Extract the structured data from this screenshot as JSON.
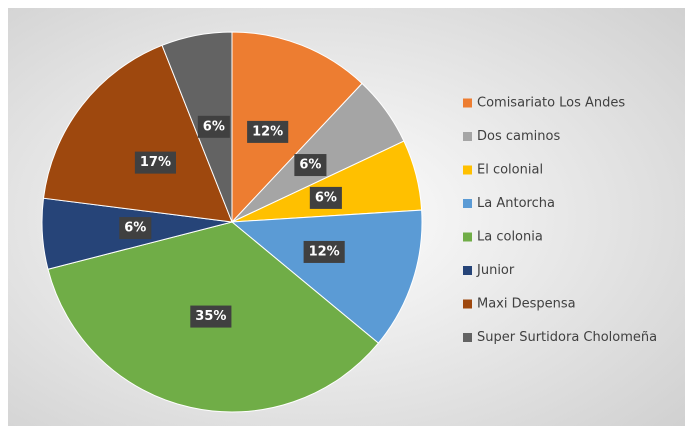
{
  "chart_data": {
    "type": "pie",
    "categories": [
      "Comisariato Los Andes",
      "Dos caminos",
      "El colonial",
      "La Antorcha",
      "La colonia",
      "Junior",
      "Maxi Despensa",
      "Super Surtidora Cholomeña"
    ],
    "values": [
      12,
      6,
      6,
      12,
      35,
      6,
      17,
      6
    ],
    "value_labels": [
      "12%",
      "6%",
      "6%",
      "12%",
      "35%",
      "6%",
      "17%",
      "6%"
    ],
    "colors": [
      "#ed7d31",
      "#a5a5a5",
      "#ffc000",
      "#5b9bd5",
      "#70ad47",
      "#264478",
      "#9e480e",
      "#636363"
    ],
    "legend": "right"
  }
}
